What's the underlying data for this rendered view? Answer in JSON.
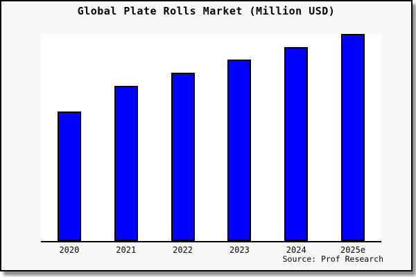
{
  "page": {
    "background": "#FFFFFF",
    "card_background": "#F8F8F8",
    "card_border_color": "#000000",
    "plot_background": "#FFFFFF"
  },
  "chart": {
    "source_label": "Source: Prof Research"
  },
  "chart_data": {
    "type": "bar",
    "title": "Global Plate Rolls Market (Million USD)",
    "categories": [
      "2020",
      "2021",
      "2022",
      "2023",
      "2024",
      "2025e"
    ],
    "values": [
      62.1,
      74.4,
      80.7,
      87.0,
      93.0,
      99.3
    ],
    "units": "Million USD",
    "note": "y-axis is unlabeled in the image; values are relative estimates where the plot top equals 100",
    "xlabel": "",
    "ylabel": "",
    "ylim": [
      0,
      100
    ],
    "grid": false,
    "legend": false,
    "bar_fill_color": "#0000FF",
    "bar_edge_color": "#000000",
    "axis_color": "#000000",
    "source": "Source: Prof Research"
  }
}
